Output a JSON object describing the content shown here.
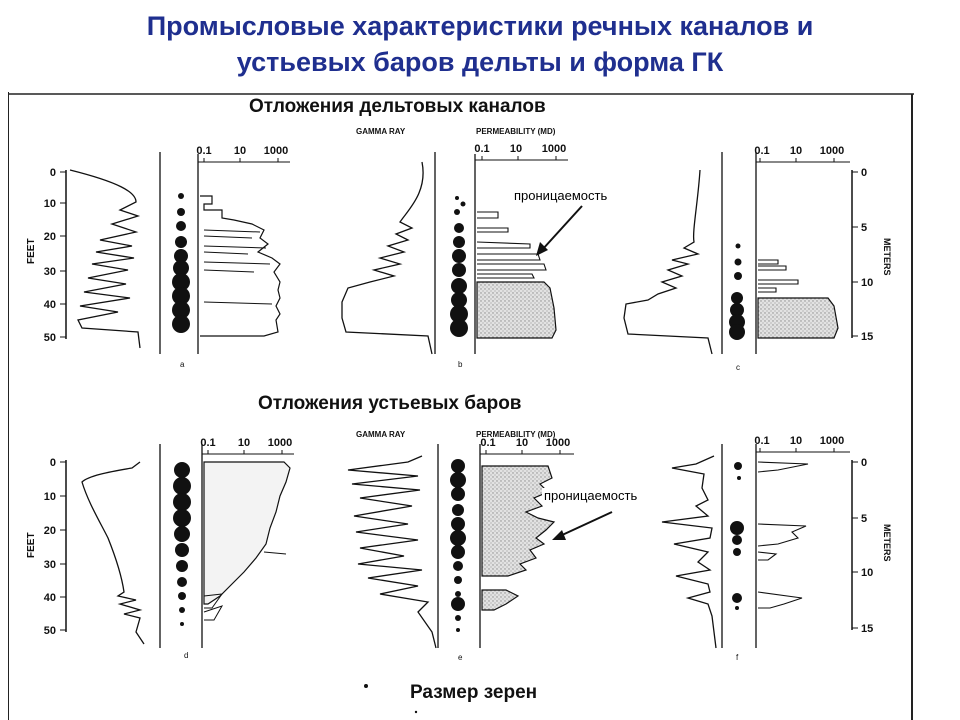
{
  "slide": {
    "title_line1": "Промысловые характеристики речных каналов и",
    "title_line2": "устьевых баров дельты и форма ГК"
  },
  "sections": {
    "channels_title": "Отложения дельтовых каналов",
    "bars_title": "Отложения устьевых баров",
    "grain_size_label": "Размер зерен"
  },
  "callouts": {
    "permeability_top": "проницаемость",
    "permeability_bottom": "проницаемость"
  },
  "figure_labels": {
    "gamma_ray": "GAMMA RAY",
    "permeability_md": "PERMEABILITY (MD)",
    "feet": "FEET",
    "meters": "METERS",
    "perm_ticks": [
      "0.1",
      "10",
      "1000"
    ],
    "feet_ticks": [
      "0",
      "10",
      "20",
      "30",
      "40",
      "50"
    ],
    "meter_ticks": [
      "0",
      "5",
      "10",
      "15"
    ],
    "panel_letters": [
      "a",
      "b",
      "c",
      "d",
      "e",
      "f"
    ]
  },
  "colors": {
    "title": "#1f2f8f",
    "ink": "#111111",
    "stipple": "#c8c8c8"
  }
}
